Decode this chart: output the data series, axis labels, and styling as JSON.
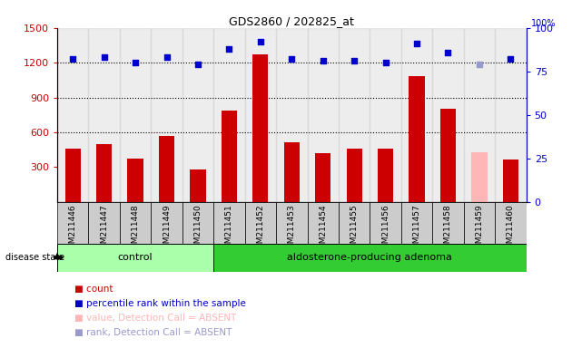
{
  "title": "GDS2860 / 202825_at",
  "samples": [
    "GSM211446",
    "GSM211447",
    "GSM211448",
    "GSM211449",
    "GSM211450",
    "GSM211451",
    "GSM211452",
    "GSM211453",
    "GSM211454",
    "GSM211455",
    "GSM211456",
    "GSM211457",
    "GSM211458",
    "GSM211459",
    "GSM211460"
  ],
  "counts": [
    460,
    500,
    370,
    565,
    280,
    790,
    1270,
    510,
    420,
    460,
    460,
    1080,
    800,
    0,
    365
  ],
  "absent_count": [
    null,
    null,
    null,
    null,
    null,
    null,
    null,
    null,
    null,
    null,
    null,
    null,
    null,
    430,
    null
  ],
  "percentile_ranks": [
    82,
    83,
    80,
    83,
    79,
    88,
    92,
    82,
    81,
    81,
    80,
    91,
    86,
    null,
    82
  ],
  "absent_rank": [
    null,
    null,
    null,
    null,
    null,
    null,
    null,
    null,
    null,
    null,
    null,
    null,
    null,
    79,
    null
  ],
  "ylim_left": [
    0,
    1500
  ],
  "ylim_right": [
    0,
    100
  ],
  "yticks_left": [
    300,
    600,
    900,
    1200,
    1500
  ],
  "yticks_right": [
    0,
    25,
    50,
    75,
    100
  ],
  "xlim": [
    -0.5,
    14.5
  ],
  "bar_color": "#cc0000",
  "absent_bar_color": "#ffb6b6",
  "rank_color": "#0000cc",
  "absent_rank_color": "#9999cc",
  "bg_color": "#cccccc",
  "control_color": "#aaffaa",
  "adenoma_color": "#33cc33",
  "left_axis_color": "#cc0000",
  "right_axis_color": "#0000cc",
  "grid_color": "#000000",
  "grid_lines": [
    600,
    900,
    1200
  ],
  "control_end_idx": 4,
  "adenoma_start_idx": 5,
  "legend_items": [
    {
      "color": "#cc0000",
      "label": "count"
    },
    {
      "color": "#0000cc",
      "label": "percentile rank within the sample"
    },
    {
      "color": "#ffb6b6",
      "label": "value, Detection Call = ABSENT"
    },
    {
      "color": "#9999cc",
      "label": "rank, Detection Call = ABSENT"
    }
  ]
}
